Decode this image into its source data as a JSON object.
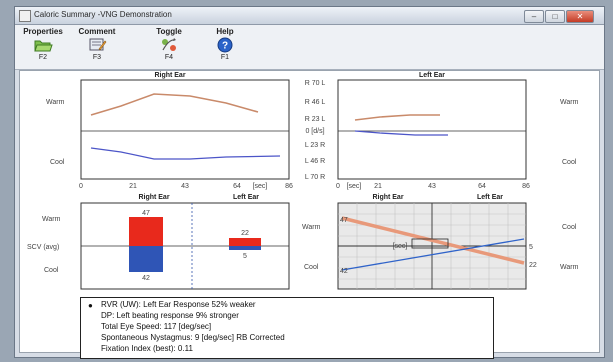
{
  "window": {
    "title": "Caloric Summary -VNG Demonstration",
    "controls": {
      "minimize": "–",
      "maximize": "□",
      "close": "✕"
    }
  },
  "toolbar": {
    "items": [
      {
        "label": "Properties",
        "key": "F2",
        "icon": "folder-icon"
      },
      {
        "label": "Comment",
        "key": "F3",
        "icon": "comment-icon"
      },
      {
        "label": "Toggle",
        "key": "F4",
        "icon": "toggle-icon"
      },
      {
        "label": "Help",
        "key": "F1",
        "icon": "help-icon"
      }
    ]
  },
  "slope_panel": {
    "right_title": "Right Ear",
    "left_title": "Left Ear",
    "warm_label": "Warm",
    "cool_label": "Cool",
    "center_labels": [
      "R 70 L",
      "R 46 L",
      "R 23 L",
      "0 [d/s]",
      "L 23 R",
      "L 46 R",
      "L 70 R"
    ],
    "right_x_ticks": [
      "0",
      "21",
      "43",
      "64",
      "[sec]",
      "86"
    ],
    "left_x_ticks": [
      "0",
      "[sec]",
      "21",
      "43",
      "64",
      "86"
    ]
  },
  "bar_panel": {
    "right_title": "Right Ear",
    "left_title": "Left Ear",
    "warm_label": "Warm",
    "cool_label": "Cool",
    "scv_label": "SCV (avg)",
    "right_warm_value": "47",
    "right_cool_value": "42",
    "left_warm_value": "22",
    "left_cool_value": "5"
  },
  "butterfly_panel": {
    "right_title": "Right Ear",
    "left_title": "Left Ear",
    "left_warm": "Warm",
    "left_cool": "Cool",
    "right_cool": "Cool",
    "right_warm": "Warm",
    "left_value_top": "47",
    "left_value_bottom": "42",
    "right_value_top": "5",
    "right_value_bottom": "22",
    "center_label": "[sec]"
  },
  "summary": {
    "lines": [
      "RVR (UW): Left Ear Response 52% weaker",
      "DP: Left beating response 9% stronger",
      "Total Eye Speed: 117 [deg/sec]",
      "Spontaneous Nystagmus: 9 [deg/sec] RB  Corrected",
      "Fixation Index (best): 0.11"
    ]
  },
  "colors": {
    "warm_red": "#e8291c",
    "cool_blue": "#2f55b6",
    "warm_line": "#c98a6a",
    "cool_line": "#4c55c8"
  }
}
